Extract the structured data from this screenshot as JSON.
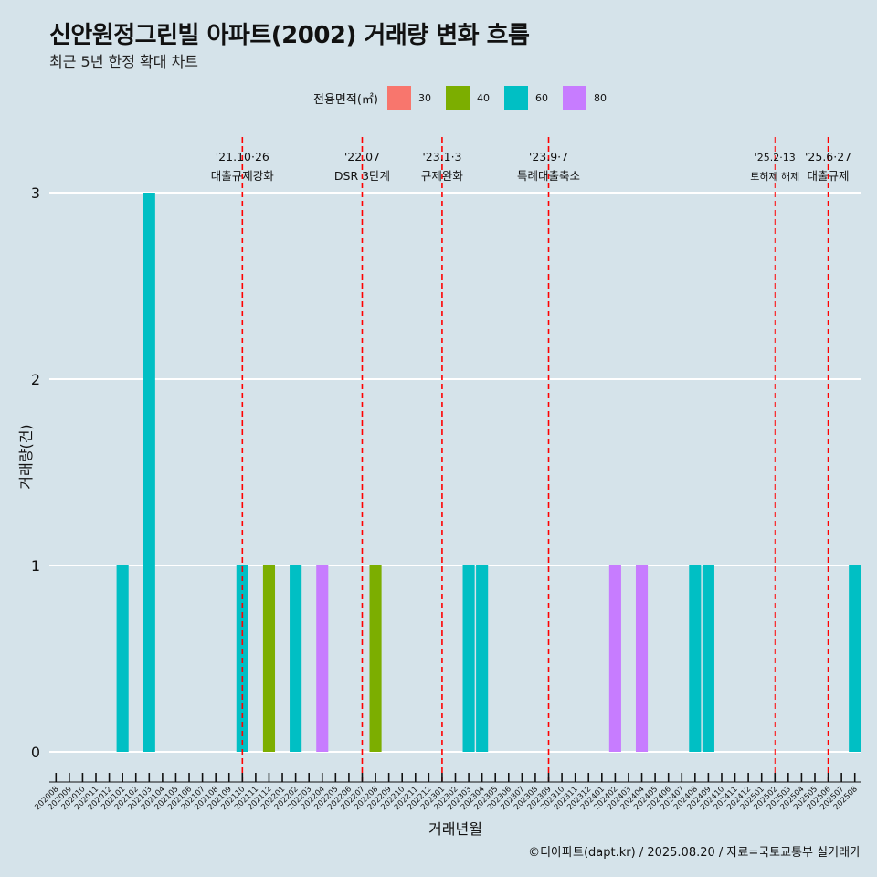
{
  "title": "신안원정그린빌 아파트(2002) 거래량 변화 흐름",
  "subtitle": "최근 5년 한정 확대 차트",
  "caption": "©디아파트(dapt.kr) / 2025.08.20 / 자료=국토교통부 실거래가",
  "legend": {
    "title": "전용면적(㎡)",
    "items": [
      {
        "label": "30",
        "color": "#f8766d"
      },
      {
        "label": "40",
        "color": "#7cae00"
      },
      {
        "label": "60",
        "color": "#00bfc4"
      },
      {
        "label": "80",
        "color": "#c77cff"
      }
    ]
  },
  "chart_data": {
    "type": "bar",
    "xlabel": "거래년월",
    "ylabel": "거래량(건)",
    "ylim": [
      0,
      3
    ],
    "yticks": [
      0,
      1,
      2,
      3
    ],
    "grid": true,
    "legend_position": "top",
    "categories": [
      "202008",
      "202009",
      "202010",
      "202011",
      "202012",
      "202101",
      "202102",
      "202103",
      "202104",
      "202105",
      "202106",
      "202107",
      "202108",
      "202109",
      "202110",
      "202111",
      "202112",
      "202201",
      "202202",
      "202203",
      "202204",
      "202205",
      "202206",
      "202207",
      "202208",
      "202209",
      "202210",
      "202211",
      "202212",
      "202301",
      "202302",
      "202303",
      "202304",
      "202305",
      "202306",
      "202307",
      "202308",
      "202309",
      "202310",
      "202311",
      "202312",
      "202401",
      "202402",
      "202403",
      "202404",
      "202405",
      "202406",
      "202407",
      "202408",
      "202409",
      "202410",
      "202411",
      "202412",
      "202501",
      "202502",
      "202503",
      "202504",
      "202505",
      "202506",
      "202507",
      "202508"
    ],
    "bars": [
      {
        "x": "202101",
        "size": "60",
        "value": 1
      },
      {
        "x": "202103",
        "size": "60",
        "value": 3
      },
      {
        "x": "202110",
        "size": "60",
        "value": 1
      },
      {
        "x": "202112",
        "size": "40",
        "value": 1
      },
      {
        "x": "202202",
        "size": "60",
        "value": 1
      },
      {
        "x": "202204",
        "size": "80",
        "value": 1
      },
      {
        "x": "202208",
        "size": "40",
        "value": 1
      },
      {
        "x": "202303",
        "size": "60",
        "value": 1
      },
      {
        "x": "202304",
        "size": "60",
        "value": 1
      },
      {
        "x": "202402",
        "size": "80",
        "value": 1
      },
      {
        "x": "202404",
        "size": "80",
        "value": 1
      },
      {
        "x": "202408",
        "size": "60",
        "value": 1
      },
      {
        "x": "202409",
        "size": "60",
        "value": 1
      },
      {
        "x": "202508",
        "size": "60",
        "value": 1
      }
    ],
    "events": [
      {
        "x": "202110",
        "date": "'21.10·26",
        "label": "대출규제강화",
        "small": false
      },
      {
        "x": "202207",
        "date": "'22.07",
        "label": "DSR 3단계",
        "small": false
      },
      {
        "x": "202301",
        "date": "'23.1·3",
        "label": "규제완화",
        "small": false
      },
      {
        "x": "202309",
        "date": "'23.9·7",
        "label": "특례대출축소",
        "small": false
      },
      {
        "x": "202502",
        "date": "'25.2·13",
        "label": "토허제 해제",
        "small": true
      },
      {
        "x": "202506",
        "date": "'25.6·27",
        "label": "대출규제",
        "small": false
      }
    ],
    "event_line_color": "#ff0000"
  }
}
